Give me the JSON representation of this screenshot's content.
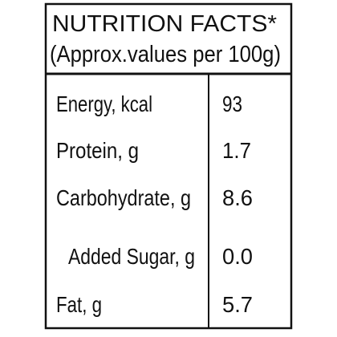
{
  "header": {
    "title": "NUTRITION FACTS*",
    "subtitle": "(Approx.values per 100g)"
  },
  "table": {
    "rows": [
      [
        "Energy, kcal",
        "93"
      ],
      [
        "Protein, g",
        "1.7"
      ],
      [
        "Carbohydrate, g",
        "8.6"
      ],
      [
        "Added Sugar, g",
        "0.0"
      ],
      [
        "Fat, g",
        "5.7"
      ]
    ]
  }
}
